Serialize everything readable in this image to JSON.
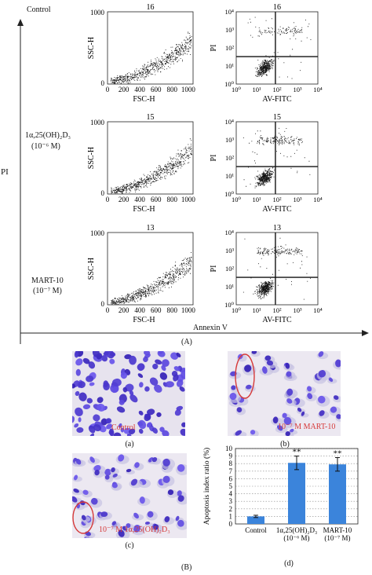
{
  "figure": {
    "y_axis_label": "PI",
    "x_axis_label": "Annexin V",
    "panel_A_label": "(A)",
    "panel_B_label": "(B)"
  },
  "rows": [
    {
      "label_lines": [
        "Control"
      ],
      "scatter_count": "16",
      "quad_count": "16"
    },
    {
      "label_lines": [
        "1α,25(OH)₂D₃",
        "(10⁻⁶ M)"
      ],
      "scatter_count": "15",
      "quad_count": "15"
    },
    {
      "label_lines": [
        "MART-10",
        "(10⁻⁷ M)"
      ],
      "scatter_count": "13",
      "quad_count": "13"
    }
  ],
  "scatter_axes": {
    "xlabel": "FSC-H",
    "ylabel": "SSC-H",
    "xticks": [
      "0",
      "200",
      "400",
      "600",
      "800",
      "1000"
    ],
    "yticks": [
      "0",
      "1000"
    ]
  },
  "quad_axes": {
    "xlabel": "AV-FITC",
    "ylabel": "PI",
    "xticks": [
      "10⁰",
      "10¹",
      "10²",
      "10³",
      "10⁴"
    ],
    "yticks": [
      "10⁰",
      "10¹",
      "10²",
      "10³",
      "10⁴"
    ]
  },
  "micrographs": [
    {
      "sublabel": "(a)",
      "overlay": "Control"
    },
    {
      "sublabel": "(b)",
      "overlay": "10⁻⁷ M MART-10"
    },
    {
      "sublabel": "(c)",
      "overlay": "10⁻⁷ M 1α,25(OH)₂D₃"
    }
  ],
  "bar_sublabel": "(d)",
  "chart_data": {
    "type": "bar",
    "title": "",
    "ylabel": "Apoptosis index ratio (%)",
    "ylim": [
      0,
      10
    ],
    "yticks": [
      "0",
      "1",
      "2",
      "3",
      "4",
      "5",
      "6",
      "7",
      "8",
      "9",
      "10"
    ],
    "categories": [
      [
        "Control"
      ],
      [
        "1α,25(OH)₂D₃",
        "(10⁻⁶ M)"
      ],
      [
        "MART-10",
        "(10⁻⁷ M)"
      ]
    ],
    "values": [
      1.0,
      8.1,
      7.9
    ],
    "errors": [
      0.15,
      0.9,
      0.9
    ],
    "significance": [
      "",
      "**",
      "**"
    ],
    "bar_color": "#3b84db",
    "grid": "horizontal dotted"
  }
}
